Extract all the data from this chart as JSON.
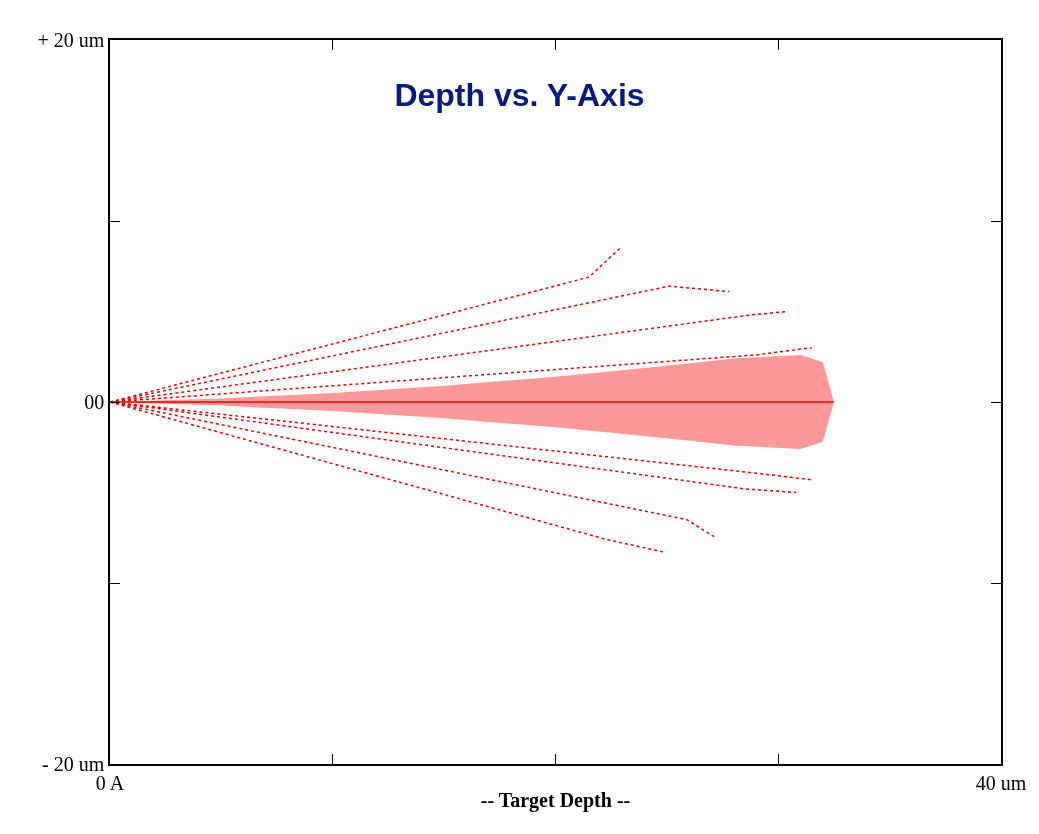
{
  "chart_data": {
    "type": "line",
    "title": "Depth vs. Y-Axis",
    "xlabel": "-- Target Depth --",
    "xlim": [
      0,
      40
    ],
    "ylim": [
      -20,
      20
    ],
    "xticks": [
      {
        "value": 0,
        "label": "0 A"
      },
      {
        "value": 10,
        "label": null
      },
      {
        "value": 20,
        "label": null
      },
      {
        "value": 30,
        "label": null
      },
      {
        "value": 40,
        "label": "40 um"
      }
    ],
    "yticks": [
      {
        "value": 20,
        "label": "+ 20 um"
      },
      {
        "value": 10,
        "label": null
      },
      {
        "value": 0,
        "label": "00"
      },
      {
        "value": -10,
        "label": null
      },
      {
        "value": -20,
        "label": "- 20 um"
      }
    ],
    "marker": "none",
    "series": [
      {
        "color": "#ff0000",
        "line_style": "solid",
        "x": [
          0,
          5,
          10,
          15,
          20,
          25,
          28,
          31,
          32,
          32.5
        ],
        "values": [
          0,
          0,
          0,
          0,
          0,
          0,
          0,
          0,
          0,
          0
        ],
        "lower": [
          0,
          -0.2,
          -0.5,
          -0.9,
          -1.4,
          -2.0,
          -2.4,
          -2.6,
          -2.2,
          0
        ],
        "upper": [
          0,
          0.2,
          0.5,
          0.9,
          1.4,
          2.0,
          2.4,
          2.6,
          2.2,
          0
        ]
      },
      {
        "color": "#e00000",
        "line_style": "dotted",
        "x": [
          0,
          21.5,
          22.9
        ],
        "values": [
          0,
          6.9,
          8.5
        ]
      },
      {
        "color": "#e00000",
        "line_style": "dotted",
        "x": [
          0,
          25.1,
          27.8
        ],
        "values": [
          0,
          6.4,
          6.1
        ]
      },
      {
        "color": "#e00000",
        "line_style": "dotted",
        "x": [
          0,
          28.7,
          30.4
        ],
        "values": [
          0,
          4.8,
          5.0
        ]
      },
      {
        "color": "#e00000",
        "line_style": "dotted",
        "x": [
          0,
          29.0,
          31.5
        ],
        "values": [
          0,
          2.6,
          3.0
        ]
      },
      {
        "color": "#e00000",
        "line_style": "dotted",
        "x": [
          0,
          29.5,
          31.5
        ],
        "values": [
          0,
          -4.0,
          -4.3
        ]
      },
      {
        "color": "#e00000",
        "line_style": "dotted",
        "x": [
          0,
          28.5,
          30.8
        ],
        "values": [
          0,
          -4.8,
          -5.0
        ]
      },
      {
        "color": "#e00000",
        "line_style": "dotted",
        "x": [
          0,
          25.9,
          27.2
        ],
        "values": [
          0,
          -6.5,
          -7.5
        ]
      },
      {
        "color": "#e00000",
        "line_style": "dotted",
        "x": [
          0,
          22.3,
          24.9
        ],
        "values": [
          0,
          -7.6,
          -8.3
        ]
      }
    ]
  }
}
